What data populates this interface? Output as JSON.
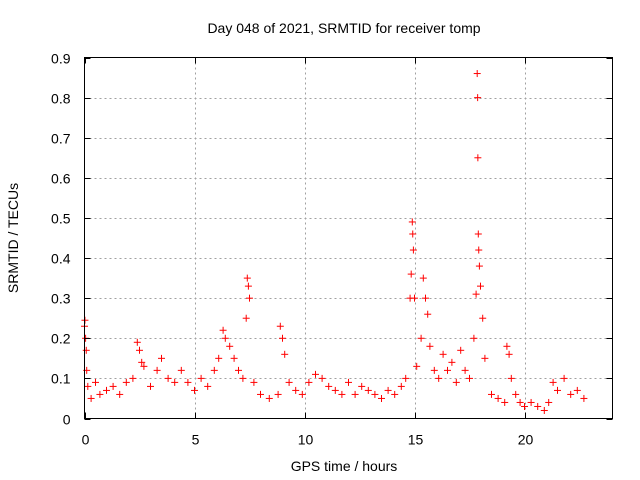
{
  "chart_data": {
    "type": "scatter",
    "title": "Day 048 of 2021, SRMTID for receiver tomp",
    "xlabel": "GPS time / hours",
    "ylabel": "SRMTID / TECUs",
    "xlim": [
      0,
      24
    ],
    "ylim": [
      0,
      0.9
    ],
    "x_ticks": [
      0,
      5,
      10,
      15,
      20
    ],
    "x_tick_labels": [
      "0",
      "5",
      "10",
      "15",
      "20"
    ],
    "y_ticks": [
      0,
      0.1,
      0.2,
      0.3,
      0.4,
      0.5,
      0.6,
      0.7,
      0.8,
      0.9
    ],
    "y_tick_labels": [
      "0",
      "0.1",
      "0.2",
      "0.3",
      "0.4",
      "0.5",
      "0.6",
      "0.7",
      "0.8",
      "0.9"
    ],
    "grid": true,
    "marker": "plus",
    "color": "#ff0000",
    "series": [
      {
        "name": "SRMTID",
        "points": [
          [
            0.0,
            0.23
          ],
          [
            0.02,
            0.245
          ],
          [
            0.05,
            0.2
          ],
          [
            0.08,
            0.17
          ],
          [
            0.1,
            0.12
          ],
          [
            0.15,
            0.08
          ],
          [
            0.3,
            0.05
          ],
          [
            0.5,
            0.09
          ],
          [
            0.7,
            0.06
          ],
          [
            1.0,
            0.07
          ],
          [
            1.3,
            0.08
          ],
          [
            1.6,
            0.06
          ],
          [
            1.9,
            0.09
          ],
          [
            2.2,
            0.1
          ],
          [
            2.4,
            0.19
          ],
          [
            2.5,
            0.17
          ],
          [
            2.6,
            0.14
          ],
          [
            2.7,
            0.13
          ],
          [
            3.0,
            0.08
          ],
          [
            3.3,
            0.12
          ],
          [
            3.5,
            0.15
          ],
          [
            3.8,
            0.1
          ],
          [
            4.1,
            0.09
          ],
          [
            4.4,
            0.12
          ],
          [
            4.7,
            0.09
          ],
          [
            5.0,
            0.07
          ],
          [
            5.3,
            0.1
          ],
          [
            5.6,
            0.08
          ],
          [
            5.9,
            0.12
          ],
          [
            6.1,
            0.15
          ],
          [
            6.3,
            0.22
          ],
          [
            6.4,
            0.2
          ],
          [
            6.6,
            0.18
          ],
          [
            6.8,
            0.15
          ],
          [
            7.0,
            0.12
          ],
          [
            7.2,
            0.1
          ],
          [
            7.35,
            0.25
          ],
          [
            7.4,
            0.35
          ],
          [
            7.45,
            0.33
          ],
          [
            7.5,
            0.3
          ],
          [
            7.7,
            0.09
          ],
          [
            8.0,
            0.06
          ],
          [
            8.4,
            0.05
          ],
          [
            8.8,
            0.06
          ],
          [
            8.9,
            0.23
          ],
          [
            9.0,
            0.2
          ],
          [
            9.1,
            0.16
          ],
          [
            9.3,
            0.09
          ],
          [
            9.6,
            0.07
          ],
          [
            9.9,
            0.06
          ],
          [
            10.2,
            0.09
          ],
          [
            10.5,
            0.11
          ],
          [
            10.8,
            0.1
          ],
          [
            11.1,
            0.08
          ],
          [
            11.4,
            0.07
          ],
          [
            11.7,
            0.06
          ],
          [
            12.0,
            0.09
          ],
          [
            12.3,
            0.06
          ],
          [
            12.6,
            0.08
          ],
          [
            12.9,
            0.07
          ],
          [
            13.2,
            0.06
          ],
          [
            13.5,
            0.05
          ],
          [
            13.8,
            0.07
          ],
          [
            14.1,
            0.06
          ],
          [
            14.4,
            0.08
          ],
          [
            14.6,
            0.1
          ],
          [
            14.8,
            0.3
          ],
          [
            14.85,
            0.36
          ],
          [
            14.9,
            0.49
          ],
          [
            14.92,
            0.46
          ],
          [
            14.95,
            0.42
          ],
          [
            15.0,
            0.3
          ],
          [
            15.1,
            0.13
          ],
          [
            15.3,
            0.2
          ],
          [
            15.4,
            0.35
          ],
          [
            15.5,
            0.3
          ],
          [
            15.6,
            0.26
          ],
          [
            15.7,
            0.18
          ],
          [
            15.9,
            0.12
          ],
          [
            16.1,
            0.1
          ],
          [
            16.3,
            0.16
          ],
          [
            16.5,
            0.12
          ],
          [
            16.7,
            0.14
          ],
          [
            16.9,
            0.09
          ],
          [
            17.1,
            0.17
          ],
          [
            17.3,
            0.12
          ],
          [
            17.5,
            0.1
          ],
          [
            17.7,
            0.2
          ],
          [
            17.8,
            0.31
          ],
          [
            17.85,
            0.86
          ],
          [
            17.87,
            0.8
          ],
          [
            17.88,
            0.65
          ],
          [
            17.9,
            0.46
          ],
          [
            17.92,
            0.42
          ],
          [
            17.95,
            0.38
          ],
          [
            18.0,
            0.33
          ],
          [
            18.1,
            0.25
          ],
          [
            18.2,
            0.15
          ],
          [
            18.5,
            0.06
          ],
          [
            18.8,
            0.05
          ],
          [
            19.1,
            0.04
          ],
          [
            19.2,
            0.18
          ],
          [
            19.3,
            0.16
          ],
          [
            19.4,
            0.1
          ],
          [
            19.6,
            0.06
          ],
          [
            19.8,
            0.04
          ],
          [
            20.0,
            0.03
          ],
          [
            20.3,
            0.04
          ],
          [
            20.6,
            0.03
          ],
          [
            20.9,
            0.02
          ],
          [
            21.1,
            0.04
          ],
          [
            21.3,
            0.09
          ],
          [
            21.5,
            0.07
          ],
          [
            21.8,
            0.1
          ],
          [
            22.1,
            0.06
          ],
          [
            22.4,
            0.07
          ],
          [
            22.7,
            0.05
          ]
        ]
      }
    ]
  }
}
